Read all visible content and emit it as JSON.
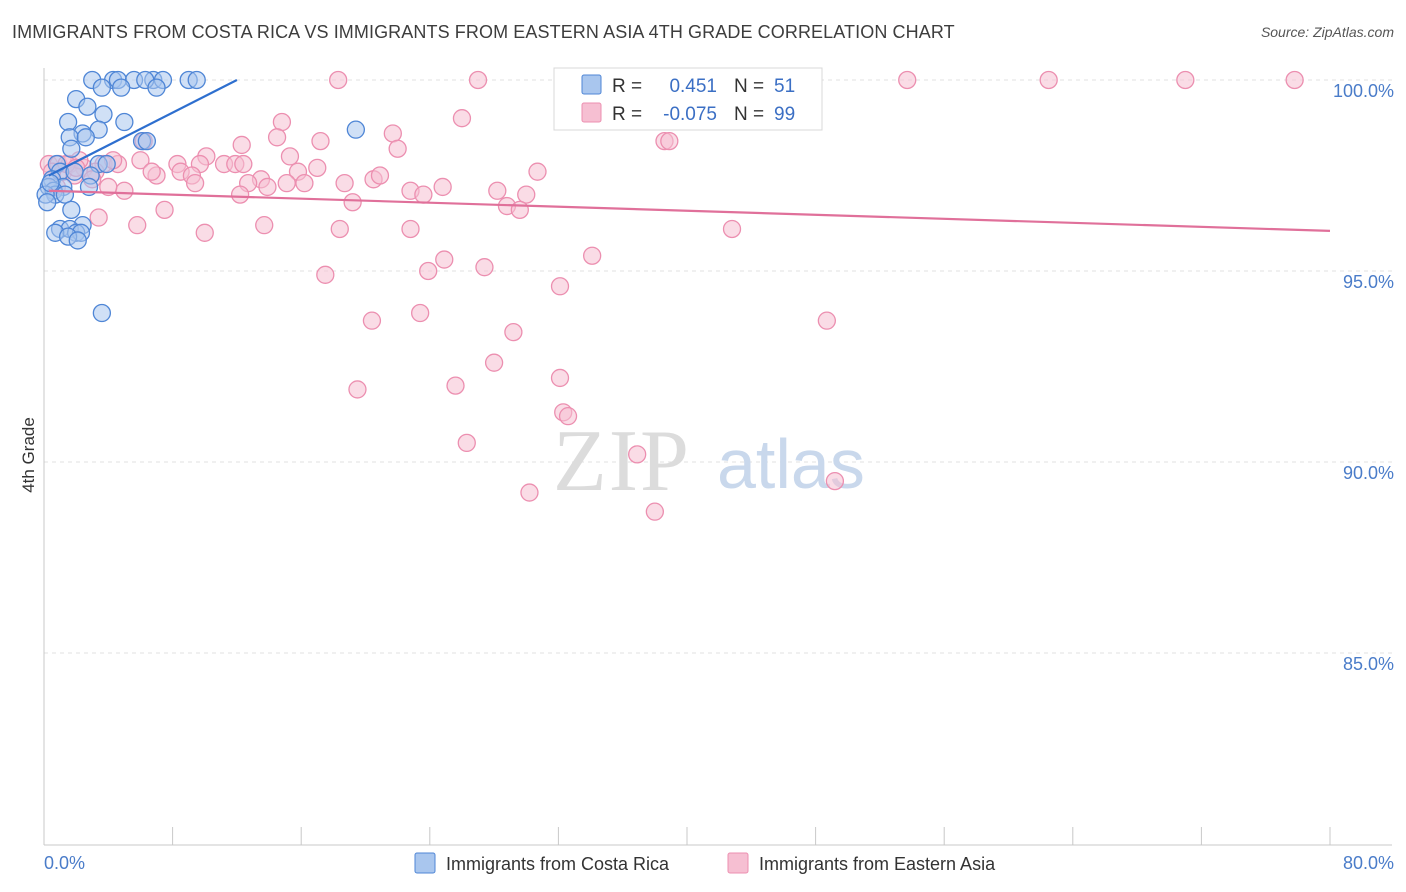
{
  "title": "IMMIGRANTS FROM COSTA RICA VS IMMIGRANTS FROM EASTERN ASIA 4TH GRADE CORRELATION CHART",
  "source": "Source: ZipAtlas.com",
  "watermark": {
    "zip": "ZIP",
    "atlas": "atlas"
  },
  "colors": {
    "blue_fill": "#a9c6ee",
    "blue_stroke": "#4f86d6",
    "blue_line": "#2e6fcf",
    "pink_fill": "#f6bfd2",
    "pink_stroke": "#ec8fb0",
    "pink_line": "#e0709a",
    "grid": "#e2e2e2",
    "axis_text": "#4a7cc9"
  },
  "stats": [
    {
      "r_label": "R =",
      "r_value": "0.451",
      "n_label": "N =",
      "n_value": "51"
    },
    {
      "r_label": "R =",
      "r_value": "-0.075",
      "n_label": "N =",
      "n_value": "99"
    }
  ],
  "chart_data": {
    "type": "scatter",
    "title": "IMMIGRANTS FROM COSTA RICA VS IMMIGRANTS FROM EASTERN ASIA 4TH GRADE CORRELATION CHART",
    "xlabel": "",
    "ylabel": "4th Grade",
    "xlim": [
      0,
      80
    ],
    "ylim": [
      80.5,
      100.5
    ],
    "x_tick_labels": [
      "0.0%",
      "80.0%"
    ],
    "y_ticks": [
      85,
      90,
      95,
      100
    ],
    "y_tick_labels": [
      "85.0%",
      "90.0%",
      "95.0%",
      "100.0%"
    ],
    "grid": true,
    "legend_position": "bottom",
    "series": [
      {
        "name": "Immigrants from Costa Rica",
        "color": "#4f86d6",
        "trend": {
          "x": [
            0.3,
            12.0
          ],
          "y": [
            97.5,
            100.0
          ]
        },
        "points": [
          [
            4.3,
            100.0
          ],
          [
            3.0,
            100.0
          ],
          [
            4.6,
            100.0
          ],
          [
            5.6,
            100.0
          ],
          [
            6.8,
            100.0
          ],
          [
            6.3,
            100.0
          ],
          [
            7.4,
            100.0
          ],
          [
            9.0,
            100.0
          ],
          [
            9.5,
            100.0
          ],
          [
            7.0,
            99.8
          ],
          [
            3.6,
            99.8
          ],
          [
            4.8,
            99.8
          ],
          [
            2.0,
            99.5
          ],
          [
            2.7,
            99.3
          ],
          [
            3.7,
            99.1
          ],
          [
            2.4,
            98.6
          ],
          [
            3.4,
            98.7
          ],
          [
            5.0,
            98.9
          ],
          [
            1.5,
            98.9
          ],
          [
            1.6,
            98.5
          ],
          [
            2.6,
            98.5
          ],
          [
            6.1,
            98.4
          ],
          [
            6.4,
            98.4
          ],
          [
            19.4,
            98.7
          ],
          [
            1.7,
            98.2
          ],
          [
            0.8,
            97.8
          ],
          [
            3.4,
            97.8
          ],
          [
            3.9,
            97.8
          ],
          [
            1.0,
            97.6
          ],
          [
            2.9,
            97.5
          ],
          [
            0.5,
            97.4
          ],
          [
            1.2,
            97.2
          ],
          [
            0.3,
            97.2
          ],
          [
            0.6,
            97.1
          ],
          [
            2.8,
            97.2
          ],
          [
            0.7,
            97.0
          ],
          [
            1.3,
            97.0
          ],
          [
            0.1,
            97.0
          ],
          [
            0.2,
            96.8
          ],
          [
            1.7,
            96.6
          ],
          [
            2.4,
            96.2
          ],
          [
            1.0,
            96.1
          ],
          [
            1.6,
            96.1
          ],
          [
            2.0,
            96.0
          ],
          [
            0.7,
            96.0
          ],
          [
            2.3,
            96.0
          ],
          [
            1.5,
            95.9
          ],
          [
            2.1,
            95.8
          ],
          [
            3.6,
            93.9
          ],
          [
            0.4,
            97.3
          ],
          [
            1.9,
            97.6
          ]
        ]
      },
      {
        "name": "Immigrants from Eastern Asia",
        "color": "#ec8fb0",
        "trend": {
          "x": [
            0.3,
            80.0
          ],
          "y": [
            97.1,
            96.05
          ]
        },
        "points": [
          [
            18.3,
            100.0
          ],
          [
            27.0,
            100.0
          ],
          [
            37.0,
            100.0
          ],
          [
            40.5,
            100.0
          ],
          [
            43.0,
            100.0
          ],
          [
            53.7,
            100.0
          ],
          [
            62.5,
            100.0
          ],
          [
            71.0,
            100.0
          ],
          [
            77.8,
            100.0
          ],
          [
            26.0,
            99.0
          ],
          [
            14.8,
            98.9
          ],
          [
            17.2,
            98.4
          ],
          [
            21.7,
            98.6
          ],
          [
            14.5,
            98.5
          ],
          [
            38.6,
            98.4
          ],
          [
            12.3,
            98.3
          ],
          [
            6.2,
            98.4
          ],
          [
            22.0,
            98.2
          ],
          [
            10.1,
            98.0
          ],
          [
            15.3,
            98.0
          ],
          [
            0.3,
            97.8
          ],
          [
            0.9,
            97.8
          ],
          [
            1.6,
            97.8
          ],
          [
            2.5,
            97.7
          ],
          [
            3.7,
            97.8
          ],
          [
            4.6,
            97.8
          ],
          [
            6.0,
            97.9
          ],
          [
            8.3,
            97.8
          ],
          [
            9.7,
            97.8
          ],
          [
            11.2,
            97.8
          ],
          [
            11.9,
            97.8
          ],
          [
            12.4,
            97.8
          ],
          [
            15.8,
            97.6
          ],
          [
            8.5,
            97.6
          ],
          [
            9.2,
            97.5
          ],
          [
            3.2,
            97.6
          ],
          [
            1.2,
            97.6
          ],
          [
            7.0,
            97.5
          ],
          [
            13.5,
            97.4
          ],
          [
            16.2,
            97.3
          ],
          [
            18.7,
            97.3
          ],
          [
            20.5,
            97.4
          ],
          [
            20.9,
            97.5
          ],
          [
            24.8,
            97.2
          ],
          [
            28.2,
            97.1
          ],
          [
            30.0,
            97.0
          ],
          [
            30.7,
            97.6
          ],
          [
            22.8,
            97.1
          ],
          [
            23.6,
            97.0
          ],
          [
            12.7,
            97.3
          ],
          [
            13.9,
            97.2
          ],
          [
            9.4,
            97.3
          ],
          [
            5.0,
            97.1
          ],
          [
            12.2,
            97.0
          ],
          [
            19.2,
            96.8
          ],
          [
            28.8,
            96.7
          ],
          [
            29.6,
            96.6
          ],
          [
            7.5,
            96.6
          ],
          [
            3.4,
            96.4
          ],
          [
            5.8,
            96.2
          ],
          [
            13.7,
            96.2
          ],
          [
            18.4,
            96.1
          ],
          [
            22.8,
            96.1
          ],
          [
            10.0,
            96.0
          ],
          [
            42.8,
            96.1
          ],
          [
            0.5,
            97.6
          ],
          [
            1.9,
            97.5
          ],
          [
            2.2,
            97.9
          ],
          [
            17.0,
            97.7
          ],
          [
            6.7,
            97.6
          ],
          [
            15.1,
            97.3
          ],
          [
            4.0,
            97.2
          ],
          [
            34.1,
            95.4
          ],
          [
            24.9,
            95.3
          ],
          [
            23.9,
            95.0
          ],
          [
            27.4,
            95.1
          ],
          [
            17.5,
            94.9
          ],
          [
            32.1,
            94.6
          ],
          [
            23.4,
            93.9
          ],
          [
            20.4,
            93.7
          ],
          [
            48.7,
            93.7
          ],
          [
            29.2,
            93.4
          ],
          [
            28.0,
            92.6
          ],
          [
            32.1,
            92.2
          ],
          [
            19.5,
            91.9
          ],
          [
            25.6,
            92.0
          ],
          [
            32.3,
            91.3
          ],
          [
            32.6,
            91.2
          ],
          [
            26.3,
            90.5
          ],
          [
            36.9,
            90.2
          ],
          [
            49.2,
            89.5
          ],
          [
            30.2,
            89.2
          ],
          [
            38.0,
            88.7
          ],
          [
            38.9,
            98.4
          ],
          [
            1.4,
            97.8
          ],
          [
            3.0,
            97.4
          ],
          [
            4.3,
            97.9
          ],
          [
            2.0,
            97.7
          ],
          [
            0.8,
            97.2
          ]
        ]
      }
    ]
  },
  "legend": [
    {
      "label": "Immigrants from Costa Rica"
    },
    {
      "label": "Immigrants from Eastern Asia"
    }
  ]
}
